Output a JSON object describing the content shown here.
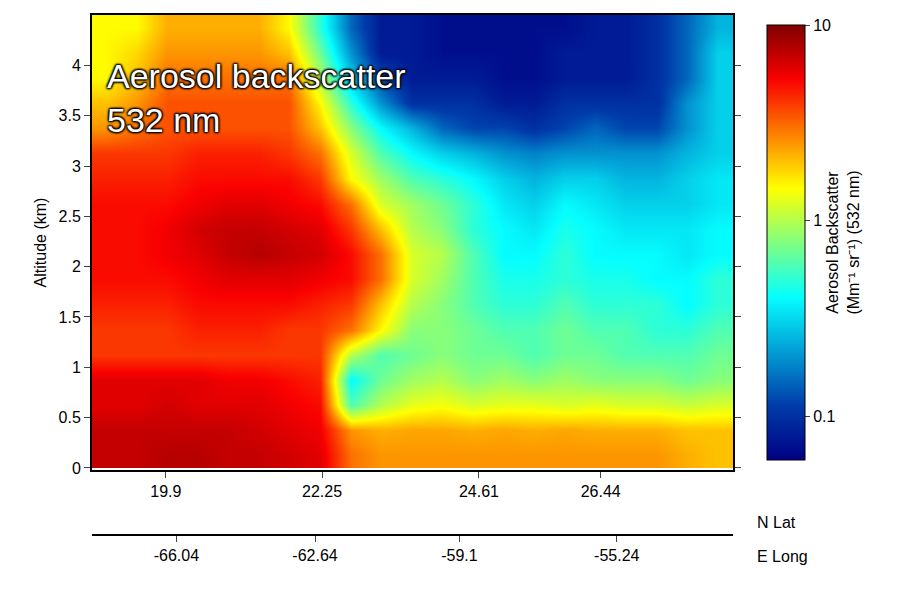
{
  "chart_data": {
    "type": "heatmap",
    "annotation": [
      "Aerosol backscatter",
      "532 nm"
    ],
    "x_label": "N Lat",
    "x2_label": "E Long",
    "y_label": "Altitude (km)",
    "color": "jet",
    "x": [
      19.0,
      19.46,
      19.92,
      20.38,
      20.84,
      21.3,
      21.76,
      22.22,
      22.68,
      23.14,
      23.6,
      24.06,
      24.52,
      24.98,
      25.44,
      25.9,
      26.36,
      26.82,
      27.28,
      27.74,
      28.2
    ],
    "y": [
      0.125,
      0.375,
      0.625,
      0.875,
      1.125,
      1.375,
      1.625,
      1.875,
      2.125,
      2.375,
      2.625,
      2.875,
      3.125,
      3.375,
      3.625,
      3.875,
      4.125,
      4.375
    ],
    "values": [
      [
        7,
        7,
        7.5,
        7.5,
        7,
        7,
        6.5,
        6,
        3,
        2.5,
        2.5,
        2.5,
        2.5,
        2.5,
        2.5,
        2.5,
        2.5,
        2.5,
        2.5,
        2.2,
        2
      ],
      [
        7,
        7,
        7,
        7,
        7,
        6.5,
        6,
        5.5,
        2.5,
        2.2,
        2.3,
        2.3,
        2.2,
        2.3,
        2.2,
        2.3,
        2.2,
        2.2,
        2.2,
        2,
        2
      ],
      [
        6,
        6,
        6.5,
        6,
        6,
        6,
        5.5,
        5,
        0.6,
        1,
        1.3,
        1.4,
        1.2,
        1.3,
        1.3,
        1.2,
        1.3,
        1.2,
        1.2,
        1.1,
        1.2
      ],
      [
        6,
        6,
        6,
        6,
        5.5,
        5.5,
        5,
        4.5,
        0.4,
        0.7,
        0.9,
        1,
        0.8,
        0.9,
        0.8,
        0.9,
        0.8,
        0.8,
        0.8,
        0.7,
        0.8
      ],
      [
        4,
        4,
        4,
        4,
        4,
        4,
        4,
        4,
        1,
        0.6,
        0.7,
        0.8,
        0.7,
        0.7,
        0.6,
        0.7,
        0.7,
        0.6,
        0.6,
        0.6,
        0.7
      ],
      [
        4,
        4,
        4,
        4.5,
        4.5,
        4.5,
        4,
        4,
        3,
        1.5,
        0.8,
        0.8,
        0.7,
        0.6,
        0.6,
        0.7,
        0.6,
        0.6,
        0.5,
        0.5,
        0.6
      ],
      [
        4.5,
        4.5,
        4.5,
        5,
        5,
        5,
        5,
        4.5,
        4,
        2,
        1,
        0.8,
        0.6,
        0.5,
        0.5,
        0.6,
        0.5,
        0.5,
        0.5,
        0.4,
        0.5
      ],
      [
        5,
        5,
        5,
        5.5,
        6,
        6,
        6,
        5.5,
        5,
        3,
        1.2,
        0.9,
        0.6,
        0.45,
        0.45,
        0.5,
        0.45,
        0.45,
        0.4,
        0.4,
        0.5
      ],
      [
        5,
        5,
        5.5,
        6,
        7,
        7.5,
        7,
        6.5,
        5,
        3,
        1.2,
        1,
        0.6,
        0.4,
        0.4,
        0.5,
        0.4,
        0.4,
        0.4,
        0.35,
        0.4
      ],
      [
        5,
        5,
        5.5,
        6.5,
        7,
        7,
        6.5,
        6,
        4,
        2,
        1,
        0.8,
        0.5,
        0.4,
        0.35,
        0.45,
        0.4,
        0.35,
        0.35,
        0.35,
        0.4
      ],
      [
        5,
        5,
        5,
        5.5,
        6,
        6,
        5.5,
        5,
        3,
        1.2,
        0.9,
        0.7,
        0.5,
        0.35,
        0.3,
        0.4,
        0.35,
        0.3,
        0.3,
        0.3,
        0.35
      ],
      [
        4.5,
        4.5,
        4.5,
        5,
        5,
        5,
        5,
        4,
        1.5,
        0.9,
        0.6,
        0.5,
        0.4,
        0.3,
        0.25,
        0.3,
        0.3,
        0.25,
        0.25,
        0.3,
        0.35
      ],
      [
        4,
        4,
        4,
        4.5,
        4.5,
        4.5,
        4,
        3,
        1.2,
        0.6,
        0.4,
        0.3,
        0.25,
        0.2,
        0.18,
        0.2,
        0.2,
        0.2,
        0.2,
        0.25,
        0.3
      ],
      [
        2.5,
        3,
        3.5,
        3.5,
        3.5,
        3.5,
        3.5,
        2,
        0.8,
        0.4,
        0.25,
        0.15,
        0.12,
        0.12,
        0.1,
        0.12,
        0.15,
        0.12,
        0.12,
        0.2,
        0.3
      ],
      [
        2,
        2.5,
        3.5,
        3.5,
        3.5,
        3.5,
        3.5,
        1.5,
        0.5,
        0.2,
        0.1,
        0.1,
        0.1,
        0.08,
        0.08,
        0.1,
        0.1,
        0.1,
        0.1,
        0.2,
        0.3
      ],
      [
        1.5,
        2,
        3,
        3,
        3,
        3,
        3,
        1,
        0.3,
        0.12,
        0.08,
        0.08,
        0.08,
        0.07,
        0.07,
        0.08,
        0.08,
        0.08,
        0.1,
        0.15,
        0.3
      ],
      [
        1.5,
        1.8,
        2.5,
        2.5,
        2.5,
        2.5,
        2,
        0.7,
        0.2,
        0.08,
        0.08,
        0.07,
        0.07,
        0.07,
        0.07,
        0.08,
        0.08,
        0.08,
        0.1,
        0.15,
        0.3
      ],
      [
        1.5,
        1.5,
        2.2,
        2.2,
        2.2,
        2.2,
        1.5,
        0.5,
        0.15,
        0.08,
        0.08,
        0.07,
        0.07,
        0.07,
        0.07,
        0.07,
        0.08,
        0.08,
        0.1,
        0.15,
        0.25
      ]
    ],
    "xlim": [
      18.79,
      28.43
    ],
    "xticks": [
      19.9,
      22.25,
      24.61,
      26.44
    ],
    "x2lim": [
      -68.11,
      -52.39
    ],
    "x2ticks": [
      -66.04,
      -62.64,
      -59.1,
      -55.24
    ],
    "ylim": [
      -0.02,
      4.5
    ],
    "yticks": [
      0,
      0.5,
      1,
      1.5,
      2,
      2.5,
      3,
      3.5,
      4
    ],
    "colorbar": {
      "title": "Aerosol Backscatter",
      "units": "(Mm⁻¹ sr⁻¹) (532 nm)",
      "lim": [
        0.06,
        10
      ],
      "ticks": [
        0.1,
        1,
        10
      ],
      "log": true
    }
  }
}
